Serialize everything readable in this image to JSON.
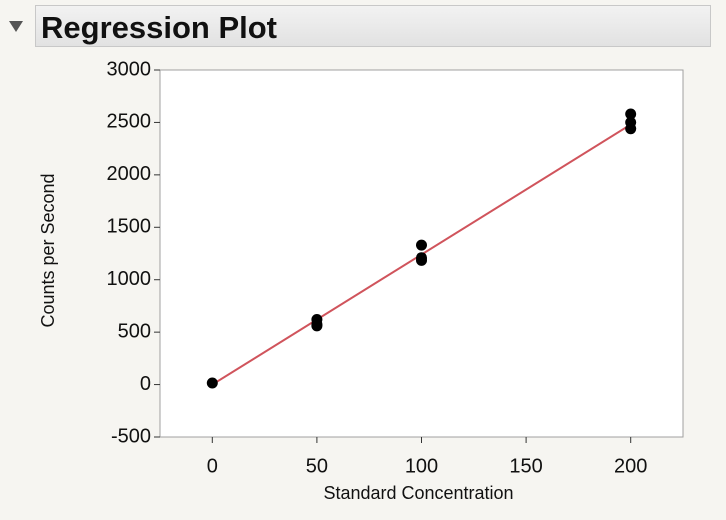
{
  "chart_data": {
    "type": "scatter",
    "title": "Regression Plot",
    "x_label": "Standard Concentration",
    "y_label": "Counts per Second",
    "xlim": [
      -25,
      225
    ],
    "xticks": [
      0,
      50,
      100,
      150,
      200
    ],
    "ylim": [
      -500,
      3000
    ],
    "yticks": [
      -500,
      0,
      500,
      1000,
      1500,
      2000,
      2500,
      3000
    ],
    "series": [
      {
        "color": "#000000",
        "x": [
          0,
          50,
          50,
          50,
          100,
          100,
          100,
          200,
          200,
          200
        ],
        "values": [
          15,
          620,
          575,
          560,
          1330,
          1210,
          1185,
          2580,
          2500,
          2440
        ]
      }
    ],
    "fit_line": {
      "color": "#d0545c",
      "x": [
        0,
        200
      ],
      "values": [
        0,
        2480
      ]
    }
  }
}
